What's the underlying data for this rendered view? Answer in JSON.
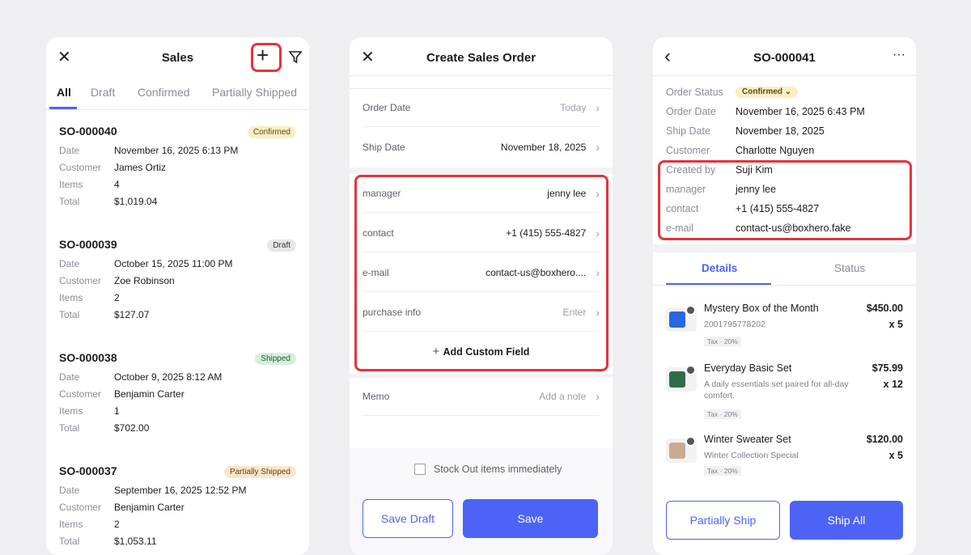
{
  "sales_list": {
    "title": "Sales",
    "tabs": [
      "All",
      "Draft",
      "Confirmed",
      "Partially Shipped"
    ],
    "labels": {
      "date": "Date",
      "customer": "Customer",
      "items": "Items",
      "total": "Total"
    },
    "orders": [
      {
        "id": "SO-000040",
        "status": "Confirmed",
        "date": "November 16, 2025 6:13 PM",
        "customer": "James Ortiz",
        "items": "4",
        "total": "$1,019.04"
      },
      {
        "id": "SO-000039",
        "status": "Draft",
        "date": "October 15, 2025 11:00 PM",
        "customer": "Zoe Robinson",
        "items": "2",
        "total": "$127.07"
      },
      {
        "id": "SO-000038",
        "status": "Shipped",
        "date": "October 9, 2025 8:12 AM",
        "customer": "Benjamin Carter",
        "items": "1",
        "total": "$702.00"
      },
      {
        "id": "SO-000037",
        "status": "Partially Shipped",
        "date": "September 16, 2025 12:52 PM",
        "customer": "Benjamin Carter",
        "items": "2",
        "total": "$1,053.11"
      }
    ]
  },
  "create": {
    "title": "Create Sales Order",
    "fields": [
      {
        "label": "Order Date",
        "value": "Today",
        "placeholder": true
      },
      {
        "label": "Ship Date",
        "value": "November 18, 2025"
      }
    ],
    "custom": [
      {
        "label": "manager",
        "value": "jenny lee"
      },
      {
        "label": "contact",
        "value": "+1 (415) 555-4827"
      },
      {
        "label": "e-mail",
        "value": "contact-us@boxhero...."
      },
      {
        "label": "purchase info",
        "value": "Enter",
        "placeholder": true
      }
    ],
    "add_custom": "Add Custom Field",
    "memo_label": "Memo",
    "memo_placeholder": "Add a note",
    "stock_out": "Stock Out items immediately",
    "save_draft": "Save Draft",
    "save": "Save"
  },
  "detail": {
    "title": "SO-000041",
    "rows": [
      {
        "label": "Order Status",
        "value": "Confirmed"
      },
      {
        "label": "Order Date",
        "value": "November 16, 2025 6:43 PM"
      },
      {
        "label": "Ship Date",
        "value": "November 18, 2025"
      },
      {
        "label": "Customer",
        "value": "Charlotte Nguyen"
      },
      {
        "label": "Created by",
        "value": "Suji Kim"
      },
      {
        "label": "manager",
        "value": "jenny lee"
      },
      {
        "label": "contact",
        "value": "+1 (415) 555-4827"
      },
      {
        "label": "e-mail",
        "value": "contact-us@boxhero.fake"
      }
    ],
    "tabs": [
      "Details",
      "Status"
    ],
    "items": [
      {
        "name": "Mystery Box of the Month",
        "sub": "2001795778202",
        "tax": "Tax · 20%",
        "price": "$450.00",
        "qty": "x 5"
      },
      {
        "name": "Everyday Basic Set",
        "sub": "A daily essentials set paired for all-day comfort.",
        "tax": "Tax · 20%",
        "price": "$75.99",
        "qty": "x 12"
      },
      {
        "name": "Winter Sweater Set",
        "sub": "Winter Collection Special",
        "tax": "Tax · 20%",
        "price": "$120.00",
        "qty": "x 5"
      }
    ],
    "partial": "Partially Ship",
    "ship_all": "Ship All"
  },
  "colors": {
    "accent": "#4c63f6",
    "highlight": "#e5333b",
    "confirmed": "#fbeec4",
    "draft": "#e7e7ea",
    "shipped": "#d6f0dc",
    "partial": "#fbe6cd"
  }
}
